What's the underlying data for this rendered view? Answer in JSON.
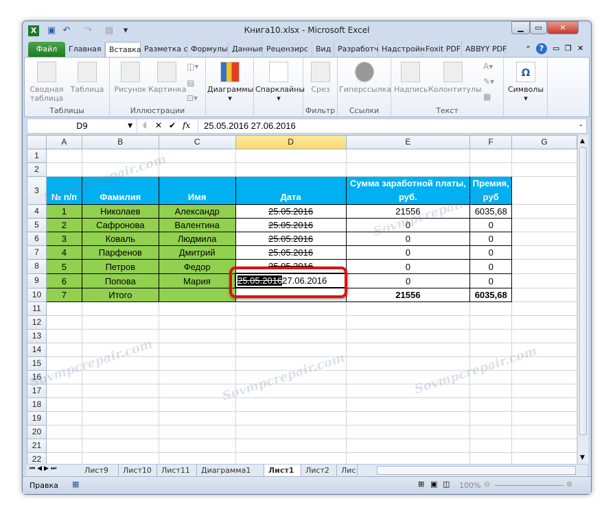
{
  "window": {
    "title": "Книга10.xlsx - Microsoft Excel"
  },
  "quick_access": [
    "excel-logo-icon",
    "save-icon",
    "undo-icon",
    "redo-icon",
    "customize-icon"
  ],
  "tabs": [
    "Файл",
    "Главная",
    "Вставка",
    "Разметка с",
    "Формулы",
    "Данные",
    "Рецензирс",
    "Вид",
    "Разработч",
    "Надстройн",
    "Foxit PDF",
    "ABBYY PDF"
  ],
  "active_tab": "Вставка",
  "ribbon": {
    "groups": [
      {
        "label": "Таблицы",
        "buttons": [
          "Сводная таблица",
          "Таблица"
        ]
      },
      {
        "label": "Иллюстрации",
        "buttons": [
          "Рисунок",
          "Картинка"
        ]
      },
      {
        "label": "",
        "buttons": [
          "Диаграммы"
        ]
      },
      {
        "label": "",
        "buttons": [
          "Спарклайны"
        ]
      },
      {
        "label": "Фильтр",
        "buttons": [
          "Срез"
        ]
      },
      {
        "label": "Ссылки",
        "buttons": [
          "Гиперссылка"
        ]
      },
      {
        "label": "Текст",
        "buttons": [
          "Надпись",
          "Колонтитулы"
        ]
      },
      {
        "label": "",
        "buttons": [
          "Символы"
        ]
      }
    ]
  },
  "formula_bar": {
    "name_box": "D9",
    "fx": "fx",
    "value": "25.05.2016 27.06.2016"
  },
  "columns": [
    "A",
    "B",
    "C",
    "D",
    "E",
    "F",
    "G"
  ],
  "selected_column": "D",
  "sheet": {
    "header": [
      "№ п/п",
      "Фамилия",
      "Имя",
      "Дата",
      "Сумма заработной платы, руб.",
      "Премия, руб"
    ],
    "rows": [
      [
        "1",
        "Николаев",
        "Александр",
        "25.05.2016",
        "21556",
        "6035,68"
      ],
      [
        "2",
        "Сафронова",
        "Валентина",
        "25.05.2016",
        "0",
        "0"
      ],
      [
        "3",
        "Коваль",
        "Людмила",
        "25.05.2016",
        "0",
        "0"
      ],
      [
        "4",
        "Парфенов",
        "Дмитрий",
        "25.05.2016",
        "0",
        "0"
      ],
      [
        "5",
        "Петров",
        "Федор",
        "25.05.2016",
        "0",
        "0"
      ],
      [
        "6",
        "Попова",
        "Мария",
        "",
        "0",
        "0"
      ],
      [
        "7",
        "Итого",
        "",
        "",
        "21556",
        "6035,68"
      ]
    ],
    "editing_cell": {
      "ref": "D9",
      "selected_text": "25.05.2016",
      "typed_text": "27.06.2016"
    }
  },
  "colors": {
    "header_fill": "#00b0f0",
    "name_fill": "#92d050",
    "highlight": "#e01010",
    "file_tab": "#2a8a30"
  },
  "sheet_tabs": [
    "Лист9",
    "Лист10",
    "Лист11",
    "Диаграмма1",
    "Лист1",
    "Лист2",
    "Лис"
  ],
  "active_sheet": "Лист1",
  "status": {
    "mode": "Правка",
    "zoom": "100%"
  },
  "watermark": "Sovmpcrepair.com"
}
